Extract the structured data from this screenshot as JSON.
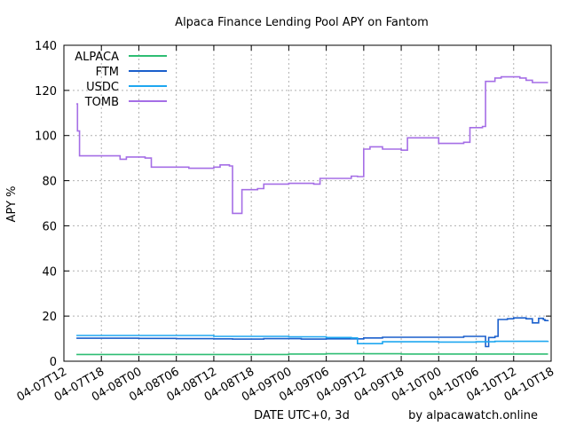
{
  "chart_data": {
    "type": "line",
    "title": "Alpaca Finance Lending Pool APY on Fantom",
    "xlabel": "DATE UTC+0, 3d",
    "ylabel": "APY %",
    "credit": "by alpacawatch.online",
    "ylim": [
      0,
      140
    ],
    "yticks": [
      0,
      20,
      40,
      60,
      80,
      100,
      120,
      140
    ],
    "xlim": [
      "2022-04-07T12:00",
      "2022-04-10T18:00"
    ],
    "xticks": [
      {
        "t": "2022-04-07T12:00",
        "label": "04-07T12"
      },
      {
        "t": "2022-04-07T18:00",
        "label": "04-07T18"
      },
      {
        "t": "2022-04-08T00:00",
        "label": "04-08T00"
      },
      {
        "t": "2022-04-08T06:00",
        "label": "04-08T06"
      },
      {
        "t": "2022-04-08T12:00",
        "label": "04-08T12"
      },
      {
        "t": "2022-04-08T18:00",
        "label": "04-08T18"
      },
      {
        "t": "2022-04-09T00:00",
        "label": "04-09T00"
      },
      {
        "t": "2022-04-09T06:00",
        "label": "04-09T06"
      },
      {
        "t": "2022-04-09T12:00",
        "label": "04-09T12"
      },
      {
        "t": "2022-04-09T18:00",
        "label": "04-09T18"
      },
      {
        "t": "2022-04-10T00:00",
        "label": "04-10T00"
      },
      {
        "t": "2022-04-10T06:00",
        "label": "04-10T06"
      },
      {
        "t": "2022-04-10T12:00",
        "label": "04-10T12"
      },
      {
        "t": "2022-04-10T18:00",
        "label": "04-10T18"
      }
    ],
    "grid": true,
    "legend": "top-left",
    "series": [
      {
        "name": "ALPACA",
        "color": "#2ebd73",
        "points": [
          [
            "2022-04-07T14:00",
            3.0
          ],
          [
            "2022-04-08T12:00",
            3.0
          ],
          [
            "2022-04-09T00:00",
            3.2
          ],
          [
            "2022-04-09T06:00",
            3.3
          ],
          [
            "2022-04-09T18:00",
            3.2
          ],
          [
            "2022-04-10T06:00",
            3.2
          ],
          [
            "2022-04-10T17:30",
            3.2
          ]
        ]
      },
      {
        "name": "FTM",
        "color": "#1a5fcc",
        "points": [
          [
            "2022-04-07T14:00",
            10.2
          ],
          [
            "2022-04-08T00:00",
            10.1
          ],
          [
            "2022-04-08T06:00",
            10.0
          ],
          [
            "2022-04-08T12:00",
            9.9
          ],
          [
            "2022-04-08T15:00",
            9.8
          ],
          [
            "2022-04-08T20:00",
            10.0
          ],
          [
            "2022-04-09T02:00",
            9.8
          ],
          [
            "2022-04-09T06:00",
            9.9
          ],
          [
            "2022-04-09T12:00",
            10.3
          ],
          [
            "2022-04-09T15:00",
            10.6
          ],
          [
            "2022-04-10T00:00",
            10.6
          ],
          [
            "2022-04-10T04:00",
            11.0
          ],
          [
            "2022-04-10T07:00",
            11.0
          ],
          [
            "2022-04-10T07:30",
            6.5
          ],
          [
            "2022-04-10T08:00",
            10.5
          ],
          [
            "2022-04-10T09:00",
            11.0
          ],
          [
            "2022-04-10T09:30",
            18.5
          ],
          [
            "2022-04-10T11:00",
            18.8
          ],
          [
            "2022-04-10T12:00",
            19.2
          ],
          [
            "2022-04-10T14:00",
            18.8
          ],
          [
            "2022-04-10T15:00",
            17.0
          ],
          [
            "2022-04-10T16:00",
            19.0
          ],
          [
            "2022-04-10T16:45",
            18.5
          ],
          [
            "2022-04-10T17:00",
            18.0
          ],
          [
            "2022-04-10T17:30",
            18.2
          ]
        ]
      },
      {
        "name": "USDC",
        "color": "#1ea7f0",
        "points": [
          [
            "2022-04-07T14:00",
            11.4
          ],
          [
            "2022-04-08T00:00",
            11.4
          ],
          [
            "2022-04-08T12:00",
            11.0
          ],
          [
            "2022-04-09T00:00",
            10.8
          ],
          [
            "2022-04-09T06:00",
            10.5
          ],
          [
            "2022-04-09T10:00",
            10.3
          ],
          [
            "2022-04-09T11:00",
            7.8
          ],
          [
            "2022-04-09T14:00",
            7.8
          ],
          [
            "2022-04-09T15:00",
            8.6
          ],
          [
            "2022-04-10T00:00",
            8.5
          ],
          [
            "2022-04-10T06:00",
            8.6
          ],
          [
            "2022-04-10T09:00",
            8.8
          ],
          [
            "2022-04-10T17:30",
            9.0
          ]
        ]
      },
      {
        "name": "TOMB",
        "color": "#a56ee6",
        "points": [
          [
            "2022-04-07T14:00",
            114.0
          ],
          [
            "2022-04-07T14:10",
            102.0
          ],
          [
            "2022-04-07T14:30",
            91.0
          ],
          [
            "2022-04-07T20:00",
            91.0
          ],
          [
            "2022-04-07T21:00",
            89.5
          ],
          [
            "2022-04-07T22:00",
            90.5
          ],
          [
            "2022-04-08T01:00",
            90.0
          ],
          [
            "2022-04-08T02:00",
            86.0
          ],
          [
            "2022-04-08T08:00",
            85.5
          ],
          [
            "2022-04-08T12:00",
            86.0
          ],
          [
            "2022-04-08T13:00",
            87.0
          ],
          [
            "2022-04-08T14:30",
            86.5
          ],
          [
            "2022-04-08T15:00",
            65.5
          ],
          [
            "2022-04-08T16:00",
            65.5
          ],
          [
            "2022-04-08T16:30",
            76.0
          ],
          [
            "2022-04-08T19:00",
            76.5
          ],
          [
            "2022-04-08T20:00",
            78.5
          ],
          [
            "2022-04-09T00:00",
            78.8
          ],
          [
            "2022-04-09T04:00",
            78.5
          ],
          [
            "2022-04-09T05:00",
            81.0
          ],
          [
            "2022-04-09T08:00",
            81.0
          ],
          [
            "2022-04-09T10:00",
            82.0
          ],
          [
            "2022-04-09T11:00",
            81.8
          ],
          [
            "2022-04-09T12:00",
            94.0
          ],
          [
            "2022-04-09T13:00",
            95.0
          ],
          [
            "2022-04-09T15:00",
            94.0
          ],
          [
            "2022-04-09T18:00",
            93.5
          ],
          [
            "2022-04-09T19:00",
            99.0
          ],
          [
            "2022-04-09T23:00",
            99.0
          ],
          [
            "2022-04-10T00:00",
            96.5
          ],
          [
            "2022-04-10T04:00",
            97.0
          ],
          [
            "2022-04-10T05:00",
            103.5
          ],
          [
            "2022-04-10T07:00",
            104.0
          ],
          [
            "2022-04-10T07:30",
            124.0
          ],
          [
            "2022-04-10T09:00",
            125.5
          ],
          [
            "2022-04-10T10:00",
            126.0
          ],
          [
            "2022-04-10T13:00",
            125.5
          ],
          [
            "2022-04-10T14:00",
            124.5
          ],
          [
            "2022-04-10T15:00",
            123.5
          ],
          [
            "2022-04-10T17:30",
            123.5
          ]
        ]
      }
    ]
  }
}
